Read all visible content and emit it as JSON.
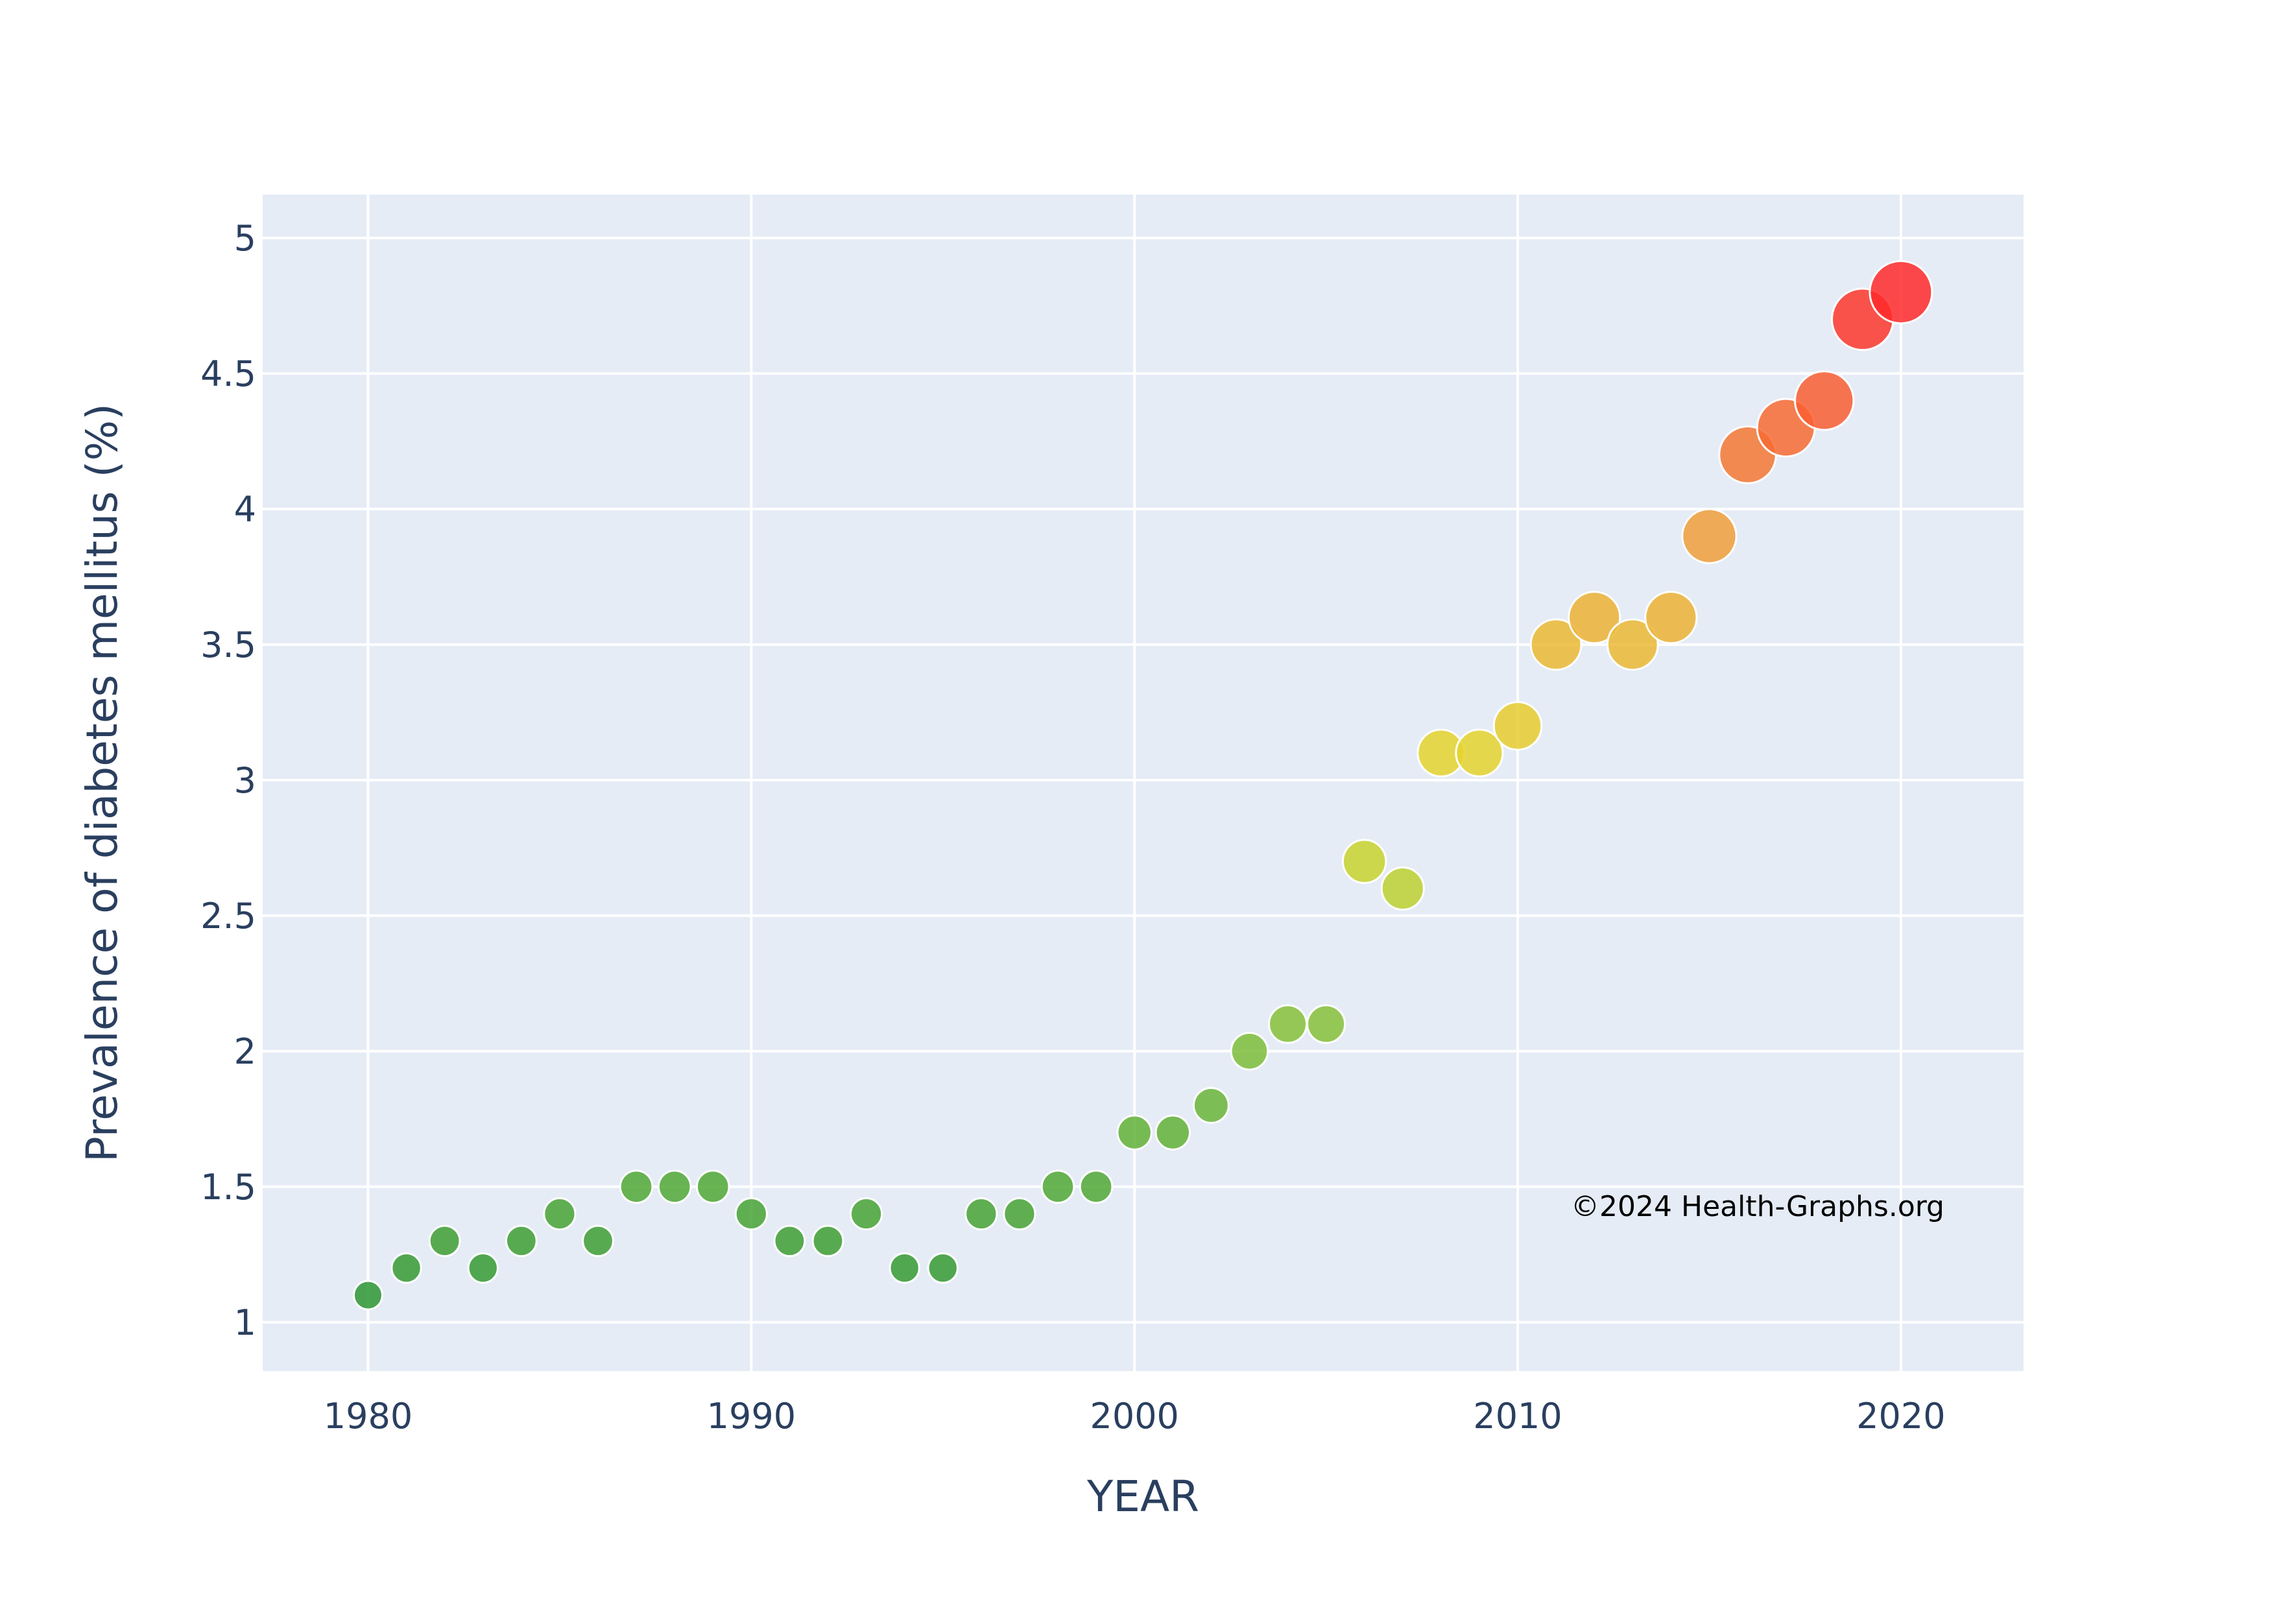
{
  "chart_data": {
    "type": "scatter",
    "xlabel": "YEAR",
    "ylabel": "Prevalence of diabetes mellitus (%)",
    "xlim": [
      1977.25,
      2023.2
    ],
    "ylim": [
      0.82,
      5.16
    ],
    "xticks": [
      1980,
      1990,
      2000,
      2010,
      2020
    ],
    "yticks": [
      1,
      1.5,
      2,
      2.5,
      3,
      3.5,
      4,
      4.5,
      5
    ],
    "grid": true,
    "legend": "none",
    "marker_size_encodes": "y",
    "marker_color_scale": [
      "#2e9632",
      "#7fbf3a",
      "#e3dc2a",
      "#f0a23a",
      "#ff2a2a"
    ],
    "series": [
      {
        "x": [
          1980,
          1981,
          1982,
          1983,
          1984,
          1985,
          1986,
          1987,
          1988,
          1989,
          1990,
          1991,
          1992,
          1993,
          1994,
          1995,
          1996,
          1997,
          1998,
          1999,
          2000,
          2001,
          2002,
          2003,
          2004,
          2005,
          2006,
          2007,
          2008,
          2009,
          2010,
          2011,
          2012,
          2013,
          2014,
          2015,
          2016,
          2017,
          2018,
          2019,
          2020
        ],
        "y": [
          1.1,
          1.2,
          1.3,
          1.2,
          1.3,
          1.4,
          1.3,
          1.5,
          1.5,
          1.5,
          1.4,
          1.3,
          1.3,
          1.4,
          1.2,
          1.2,
          1.4,
          1.4,
          1.5,
          1.5,
          1.7,
          1.7,
          1.8,
          2.0,
          2.1,
          2.1,
          2.7,
          2.6,
          3.1,
          3.1,
          3.2,
          3.5,
          3.6,
          3.5,
          3.6,
          3.9,
          4.2,
          4.3,
          4.4,
          4.7,
          4.8
        ]
      }
    ],
    "annotations": [
      {
        "text": "©2024 Health-Graphs.org"
      }
    ]
  },
  "colors": {
    "plot_background": "#e5ecf6",
    "grid": "#ffffff",
    "axis_text": "#2a3f5f",
    "annotation_text": "#000000"
  }
}
